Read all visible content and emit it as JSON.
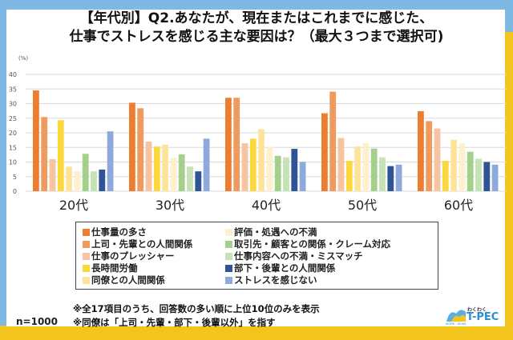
{
  "title_lines": [
    "【年代別】Q2.あなたが、現在またはこれまでに感じた、",
    "仕事でストレスを感じる主な要因は？（最大３つまで選択可)"
  ],
  "sample_size": "n=1000",
  "notes": [
    "※全17項目のうち、回答数の多い順に上位10位のみを表示",
    "※同僚は「上司・先輩・部下・後輩以外」を指す"
  ],
  "logo": {
    "text_small": "わくわく",
    "text_large": "T-PEC",
    "tagline": "WORK・WORK"
  },
  "chart_data": {
    "type": "bar",
    "ylabel": "(%)",
    "ylim": [
      0,
      40
    ],
    "yticks": [
      0,
      5,
      10,
      15,
      20,
      25,
      30,
      35,
      40
    ],
    "grid": true,
    "legend_position": "bottom",
    "categories": [
      "20代",
      "30代",
      "40代",
      "50代",
      "60代"
    ],
    "series": [
      {
        "name": "仕事量の多さ",
        "color": "#ed7d31",
        "values": [
          34.5,
          30.3,
          32.0,
          26.7,
          27.4
        ]
      },
      {
        "name": "上司・先輩との人間関係",
        "color": "#f09a5e",
        "values": [
          25.4,
          28.4,
          32.0,
          34.1,
          24.0
        ]
      },
      {
        "name": "仕事のプレッシャー",
        "color": "#f6c3a3",
        "values": [
          11.0,
          17.0,
          16.4,
          18.2,
          21.5
        ]
      },
      {
        "name": "長時間労働",
        "color": "#fbd93e",
        "values": [
          24.3,
          15.3,
          18.0,
          10.4,
          10.4
        ]
      },
      {
        "name": "同僚との人間関係",
        "color": "#fde49a",
        "values": [
          8.4,
          15.9,
          21.2,
          15.3,
          17.6
        ]
      },
      {
        "name": "評価・処遇への不満",
        "color": "#fdf0cf",
        "values": [
          6.8,
          11.5,
          15.2,
          16.5,
          16.5
        ]
      },
      {
        "name": "取引先・顧客との関係・クレーム対応",
        "color": "#a5d08a",
        "values": [
          12.8,
          12.6,
          12.1,
          14.6,
          13.5
        ]
      },
      {
        "name": "仕事内容への不満・ミスマッチ",
        "color": "#c7e2b6",
        "values": [
          6.8,
          8.4,
          11.6,
          11.6,
          11.1
        ]
      },
      {
        "name": "部下・後輩との人間関係",
        "color": "#2f5496",
        "values": [
          7.4,
          6.8,
          14.5,
          8.6,
          10.0
        ]
      },
      {
        "name": "ストレスを感じない",
        "color": "#8eaadc",
        "values": [
          20.5,
          18.0,
          10.0,
          9.1,
          9.1
        ]
      }
    ]
  }
}
